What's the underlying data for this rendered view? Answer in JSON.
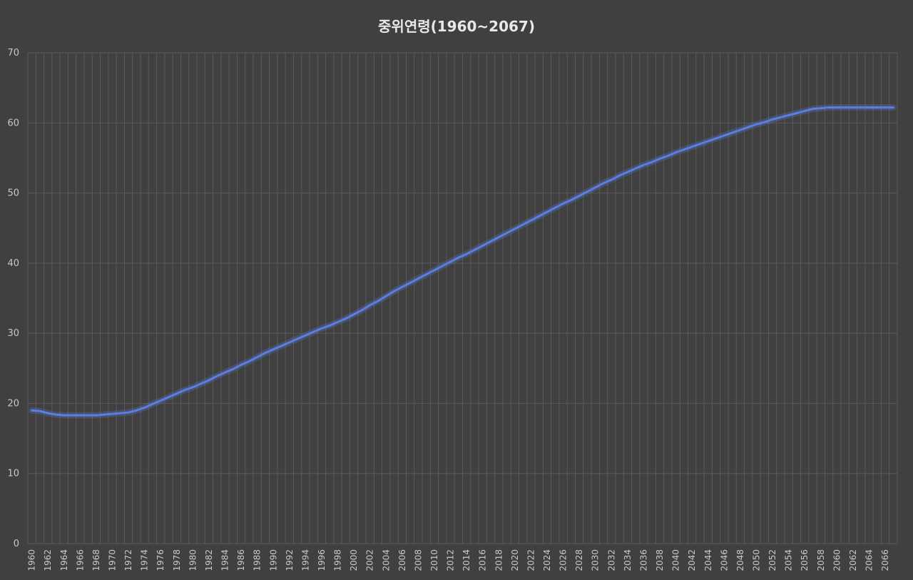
{
  "chart_data": {
    "type": "line",
    "title": "중위연령(1960~2067)",
    "xlabel": "",
    "ylabel": "",
    "ylim": [
      0,
      70
    ],
    "yticks": [
      0,
      10,
      20,
      30,
      40,
      50,
      60,
      70
    ],
    "xlim": [
      1960,
      2067
    ],
    "xtick_labels": [
      "1960",
      "1962",
      "1964",
      "1966",
      "1968",
      "1970",
      "1972",
      "1974",
      "1976",
      "1978",
      "1980",
      "1982",
      "1984",
      "1986",
      "1988",
      "1990",
      "1992",
      "1994",
      "1996",
      "1998",
      "2000",
      "2002",
      "2004",
      "2006",
      "2008",
      "2010",
      "2012",
      "2014",
      "2016",
      "2018",
      "2020",
      "2022",
      "2024",
      "2026",
      "2028",
      "2030",
      "2032",
      "2034",
      "2036",
      "2038",
      "2040",
      "2042",
      "2044",
      "2046",
      "2048",
      "2050",
      "2052",
      "2054",
      "2056",
      "2058",
      "2060",
      "2062",
      "2064",
      "2066"
    ],
    "grid": true,
    "legend": "none",
    "colors": {
      "line": "#5b7fe0",
      "grid": "#5a5a5a",
      "background": "#404040"
    },
    "series": [
      {
        "x": [
          1960,
          1961,
          1962,
          1963,
          1964,
          1965,
          1966,
          1967,
          1968,
          1969,
          1970,
          1971,
          1972,
          1973,
          1974,
          1975,
          1976,
          1977,
          1978,
          1979,
          1980,
          1981,
          1982,
          1983,
          1984,
          1985,
          1986,
          1987,
          1988,
          1989,
          1990,
          1991,
          1992,
          1993,
          1994,
          1995,
          1996,
          1997,
          1998,
          1999,
          2000,
          2001,
          2002,
          2003,
          2004,
          2005,
          2006,
          2007,
          2008,
          2009,
          2010,
          2011,
          2012,
          2013,
          2014,
          2015,
          2016,
          2017,
          2018,
          2019,
          2020,
          2021,
          2022,
          2023,
          2024,
          2025,
          2026,
          2027,
          2028,
          2029,
          2030,
          2031,
          2032,
          2033,
          2034,
          2035,
          2036,
          2037,
          2038,
          2039,
          2040,
          2041,
          2042,
          2043,
          2044,
          2045,
          2046,
          2047,
          2048,
          2049,
          2050,
          2051,
          2052,
          2053,
          2054,
          2055,
          2056,
          2057,
          2058,
          2059,
          2060,
          2061,
          2062,
          2063,
          2064,
          2065,
          2066,
          2067
        ],
        "values": [
          19.0,
          18.9,
          18.6,
          18.4,
          18.3,
          18.3,
          18.3,
          18.3,
          18.3,
          18.4,
          18.5,
          18.6,
          18.7,
          19.0,
          19.4,
          19.9,
          20.4,
          20.9,
          21.4,
          21.9,
          22.3,
          22.8,
          23.3,
          23.9,
          24.4,
          24.9,
          25.5,
          26.0,
          26.6,
          27.2,
          27.7,
          28.2,
          28.7,
          29.2,
          29.7,
          30.2,
          30.7,
          31.1,
          31.6,
          32.1,
          32.7,
          33.3,
          34.0,
          34.6,
          35.3,
          36.0,
          36.6,
          37.2,
          37.8,
          38.4,
          39.0,
          39.6,
          40.2,
          40.8,
          41.3,
          41.9,
          42.5,
          43.1,
          43.7,
          44.3,
          44.9,
          45.5,
          46.1,
          46.7,
          47.3,
          47.9,
          48.5,
          49.0,
          49.6,
          50.2,
          50.8,
          51.4,
          51.9,
          52.5,
          53.0,
          53.5,
          54.0,
          54.4,
          54.9,
          55.3,
          55.8,
          56.2,
          56.6,
          57.0,
          57.4,
          57.8,
          58.2,
          58.6,
          59.0,
          59.4,
          59.8,
          60.1,
          60.5,
          60.8,
          61.1,
          61.4,
          61.7,
          62.0,
          62.1,
          62.2,
          62.2,
          62.2,
          62.2,
          62.2,
          62.2,
          62.2,
          62.2,
          62.2
        ]
      }
    ]
  }
}
